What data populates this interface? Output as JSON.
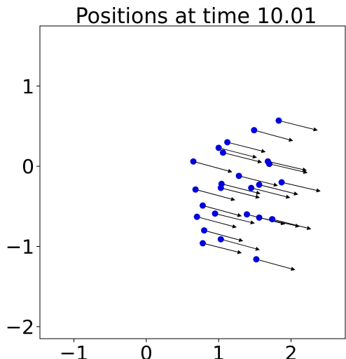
{
  "chart_data": {
    "type": "scatter",
    "title": "Positions at time 10.01",
    "xlabel": "",
    "ylabel": "",
    "xlim": [
      -1.47,
      2.75
    ],
    "ylim": [
      -2.15,
      1.75
    ],
    "xticks": [
      -1,
      0,
      1,
      2
    ],
    "xtick_labels": [
      "−1",
      "0",
      "1",
      "2"
    ],
    "yticks": [
      -2,
      -1,
      0,
      1
    ],
    "ytick_labels": [
      "−2",
      "−1",
      "0",
      "1"
    ],
    "grid": false,
    "marker_color": "#0000dd",
    "arrow_color": "#000000",
    "points": [
      {
        "x": 1.83,
        "y": 0.57,
        "dx": 0.53,
        "dy": -0.12
      },
      {
        "x": 1.49,
        "y": 0.45,
        "dx": 0.53,
        "dy": -0.13
      },
      {
        "x": 1.12,
        "y": 0.3,
        "dx": 0.52,
        "dy": -0.12
      },
      {
        "x": 1.0,
        "y": 0.23,
        "dx": 0.52,
        "dy": -0.12
      },
      {
        "x": 1.06,
        "y": 0.17,
        "dx": 0.53,
        "dy": -0.12
      },
      {
        "x": 0.65,
        "y": 0.06,
        "dx": 0.53,
        "dy": -0.13
      },
      {
        "x": 1.68,
        "y": 0.06,
        "dx": 0.53,
        "dy": -0.11
      },
      {
        "x": 1.7,
        "y": 0.03,
        "dx": 0.52,
        "dy": -0.11
      },
      {
        "x": 1.28,
        "y": -0.12,
        "dx": 0.53,
        "dy": -0.12
      },
      {
        "x": 1.87,
        "y": -0.2,
        "dx": 0.53,
        "dy": -0.11
      },
      {
        "x": 1.04,
        "y": -0.22,
        "dx": 0.53,
        "dy": -0.12
      },
      {
        "x": 1.56,
        "y": -0.23,
        "dx": 0.53,
        "dy": -0.12
      },
      {
        "x": 1.03,
        "y": -0.27,
        "dx": 0.53,
        "dy": -0.12
      },
      {
        "x": 1.45,
        "y": -0.27,
        "dx": 0.53,
        "dy": -0.12
      },
      {
        "x": 0.68,
        "y": -0.29,
        "dx": 0.54,
        "dy": -0.13
      },
      {
        "x": 0.78,
        "y": -0.49,
        "dx": 0.53,
        "dy": -0.13
      },
      {
        "x": 0.95,
        "y": -0.59,
        "dx": 0.54,
        "dy": -0.12
      },
      {
        "x": 1.39,
        "y": -0.6,
        "dx": 0.52,
        "dy": -0.12
      },
      {
        "x": 0.7,
        "y": -0.63,
        "dx": 0.54,
        "dy": -0.13
      },
      {
        "x": 1.56,
        "y": -0.64,
        "dx": 0.55,
        "dy": -0.11
      },
      {
        "x": 1.74,
        "y": -0.66,
        "dx": 0.53,
        "dy": -0.12
      },
      {
        "x": 0.8,
        "y": -0.8,
        "dx": 0.53,
        "dy": -0.13
      },
      {
        "x": 1.03,
        "y": -0.91,
        "dx": 0.53,
        "dy": -0.13
      },
      {
        "x": 0.78,
        "y": -0.96,
        "dx": 0.53,
        "dy": -0.12
      },
      {
        "x": 1.52,
        "y": -1.16,
        "dx": 0.53,
        "dy": -0.13
      }
    ]
  }
}
